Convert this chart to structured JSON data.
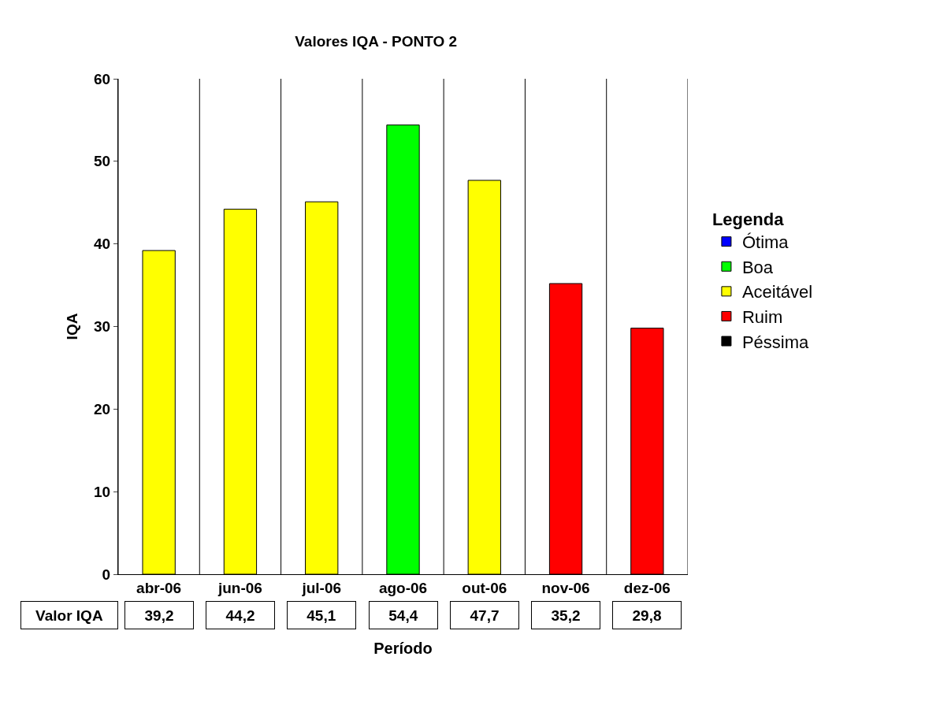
{
  "chart_data": {
    "type": "bar",
    "title": "Valores IQA - PONTO 2",
    "xlabel": "Período",
    "ylabel": "IQA",
    "legend_title": "Legenda",
    "stacked": true,
    "categories": [
      "abr-06",
      "jun-06",
      "jul-06",
      "ago-06",
      "out-06",
      "nov-06",
      "dez-06"
    ],
    "series": [
      {
        "name": "Ótima",
        "color": "#0000ff",
        "values": [
          null,
          null,
          null,
          null,
          null,
          null,
          null
        ],
        "value_labels": [
          null,
          null,
          null,
          null,
          null,
          null,
          null
        ]
      },
      {
        "name": "Boa",
        "color": "#00ff00",
        "values": [
          null,
          null,
          null,
          54.4,
          null,
          null,
          null
        ],
        "value_labels": [
          null,
          null,
          null,
          "54,4",
          null,
          null,
          null
        ]
      },
      {
        "name": "Aceitável",
        "color": "#ffff00",
        "values": [
          39.2,
          44.2,
          45.1,
          null,
          47.7,
          null,
          null
        ],
        "value_labels": [
          "39,2",
          "44,2",
          "45,1",
          null,
          "47,7",
          null,
          null
        ]
      },
      {
        "name": "Ruim",
        "color": "#ff0000",
        "values": [
          null,
          null,
          null,
          null,
          null,
          35.2,
          29.8
        ],
        "value_labels": [
          null,
          null,
          null,
          null,
          null,
          "35,2",
          "29,8"
        ]
      },
      {
        "name": "Péssima",
        "color": "#000000",
        "values": [
          null,
          null,
          null,
          null,
          null,
          null,
          null
        ],
        "value_labels": [
          null,
          null,
          null,
          null,
          null,
          null,
          null
        ]
      }
    ],
    "annotations": [
      "Valor IQA"
    ],
    "ylim": [
      0,
      60
    ],
    "yticks": [
      0,
      10,
      20,
      30,
      40,
      50,
      60
    ],
    "grid": "x",
    "legend": "right"
  }
}
